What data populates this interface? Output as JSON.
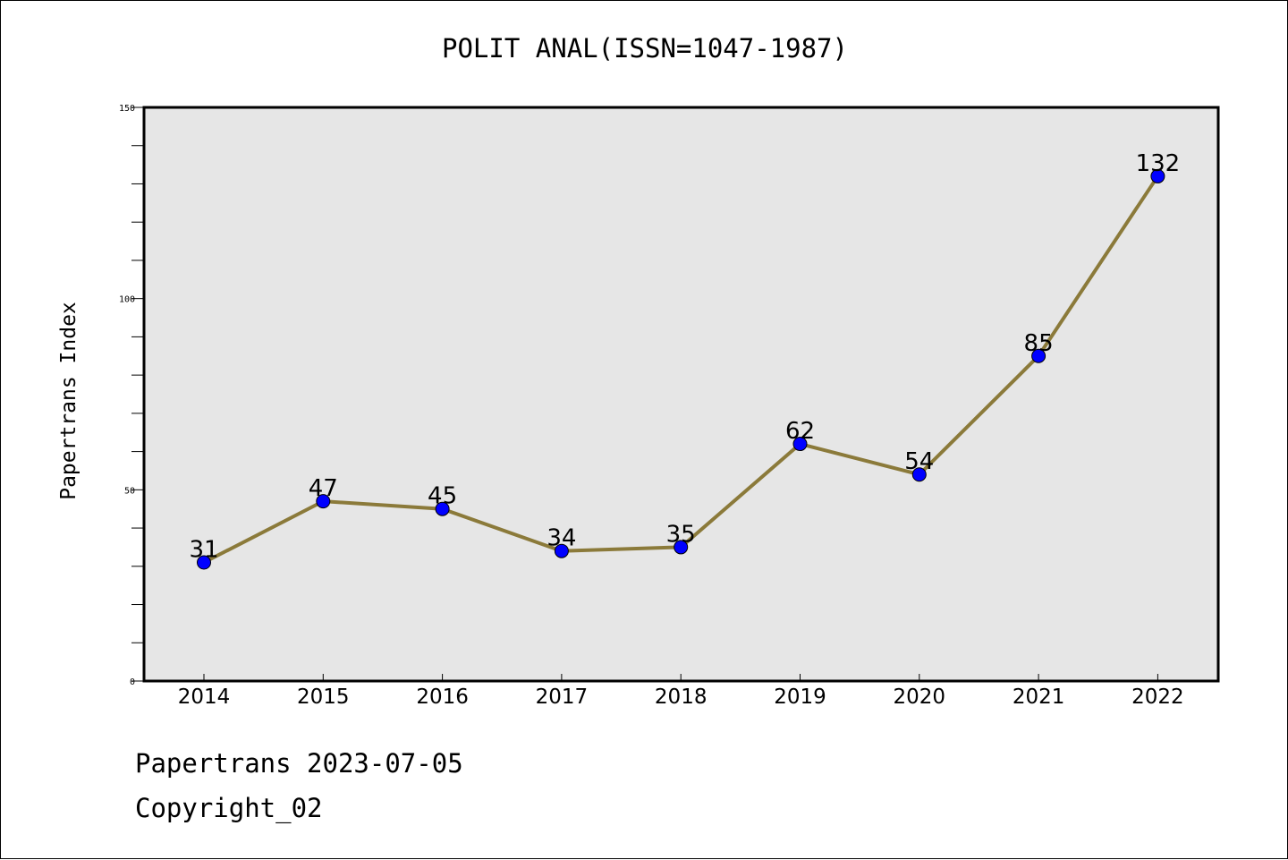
{
  "chart_data": {
    "type": "line",
    "title": "POLIT ANAL(ISSN=1047-1987)",
    "xlabel": "",
    "ylabel": "Papertrans Index",
    "categories": [
      "2014",
      "2015",
      "2016",
      "2017",
      "2018",
      "2019",
      "2020",
      "2021",
      "2022"
    ],
    "values": [
      31,
      47,
      45,
      34,
      35,
      62,
      54,
      85,
      132
    ],
    "ylim": [
      0,
      150
    ],
    "y_ticks": [
      0,
      50,
      100,
      150
    ],
    "grid": false,
    "colors": {
      "plot_background": "#e6e6e6",
      "line": "#8b7a3a",
      "marker": "#0000ff"
    }
  },
  "footer": {
    "line1": "Papertrans 2023-07-05",
    "line2": "Copyright_02"
  }
}
